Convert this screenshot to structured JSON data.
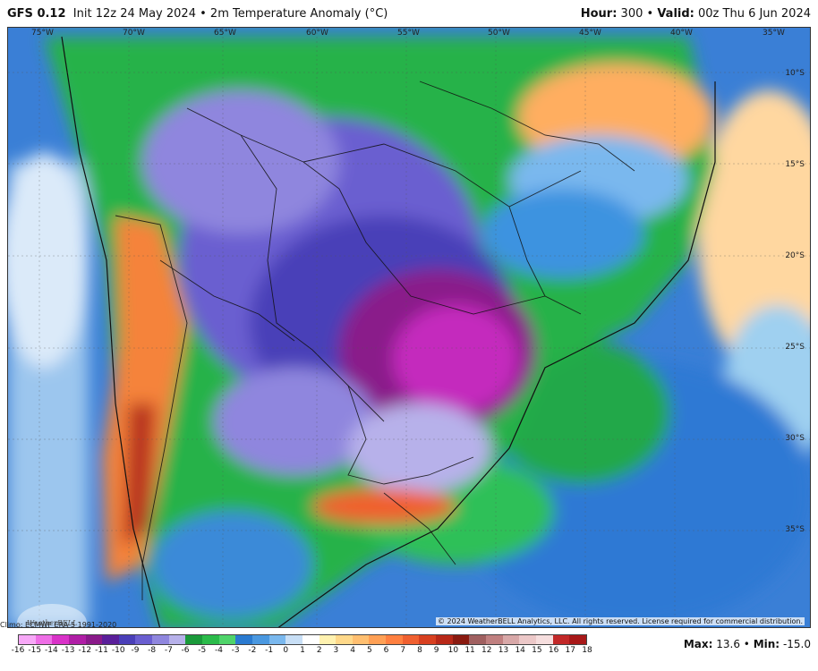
{
  "header": {
    "model": "GFS 0.12",
    "init": "Init 12z 24 May 2024",
    "field": "2m Temperature Anomaly (°C)",
    "hour_label": "Hour:",
    "hour": "300",
    "valid_label": "Valid:",
    "valid": "00z Thu 6 Jun 2024"
  },
  "map": {
    "lon_labels": [
      "75°W",
      "70°W",
      "65°W",
      "60°W",
      "55°W",
      "50°W",
      "45°W",
      "40°W",
      "35°W"
    ],
    "lat_labels": [
      "10°S",
      "15°S",
      "20°S",
      "25°S",
      "30°S",
      "35°S"
    ],
    "copyright": "© 2024 WeatherBELL Analytics, LLC. All rights reserved. License required for commercial distribution.",
    "logo": "WeatherBELL"
  },
  "footer": {
    "clim": "Climo: ECMWF ERA-5 1991-2020",
    "max_label": "Max:",
    "max": "13.6",
    "min_label": "Min:",
    "min": "-15.0"
  },
  "legend": {
    "ticks": [
      "-16",
      "-15",
      "-14",
      "-13",
      "-12",
      "-11",
      "-10",
      "-9",
      "-8",
      "-7",
      "-6",
      "-5",
      "-4",
      "-3",
      "-2",
      "-1",
      "0",
      "1",
      "2",
      "3",
      "4",
      "5",
      "6",
      "7",
      "8",
      "9",
      "10",
      "11",
      "12",
      "13",
      "14",
      "15",
      "16",
      "17",
      "18"
    ],
    "colors": [
      "#f7a8f7",
      "#ee6ee6",
      "#d932c8",
      "#b01ea6",
      "#8a1a8a",
      "#5a1f9a",
      "#4a3fb8",
      "#6a5ed0",
      "#8f86de",
      "#b7b1ea",
      "#1a9a3a",
      "#2bbb4a",
      "#4fd46a",
      "#2a7ad0",
      "#4a98e0",
      "#7ab8ee",
      "#c8dff6",
      "#ffffff",
      "#fff2b0",
      "#ffd98a",
      "#ffbf70",
      "#ffa055",
      "#ff8040",
      "#f06030",
      "#d84020",
      "#b82818",
      "#8a1a10",
      "#a06060",
      "#c08080",
      "#d8a8a8",
      "#ecc8c8",
      "#f6dede",
      "#c22828",
      "#a81818"
    ],
    "colors_meaning": "blue/purple = colder than normal, orange/red = warmer than normal"
  }
}
